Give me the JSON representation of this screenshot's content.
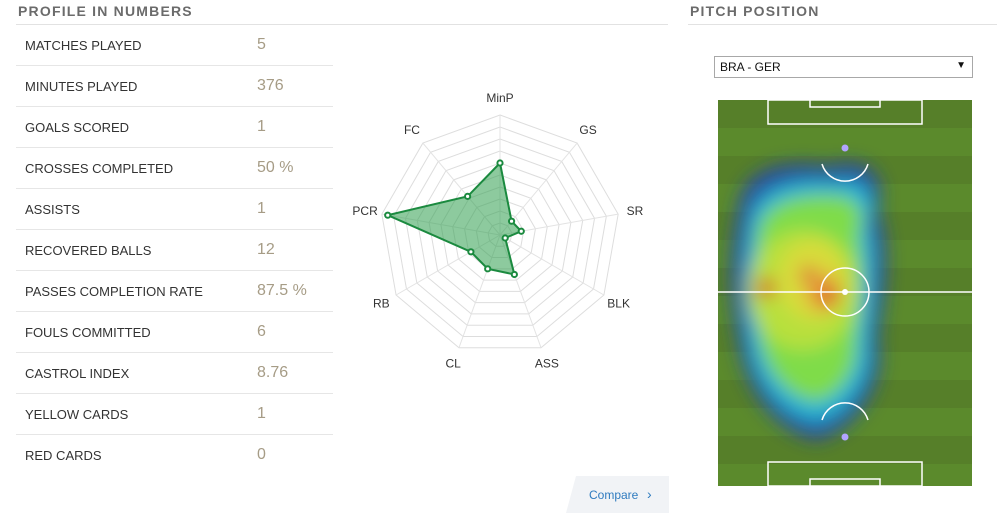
{
  "profile": {
    "title": "PROFILE IN NUMBERS",
    "stats": [
      {
        "label": "MATCHES PLAYED",
        "value": "5"
      },
      {
        "label": "MINUTES PLAYED",
        "value": "376"
      },
      {
        "label": "GOALS SCORED",
        "value": "1"
      },
      {
        "label": "CROSSES COMPLETED",
        "value": "50 %"
      },
      {
        "label": "ASSISTS",
        "value": "1"
      },
      {
        "label": "RECOVERED BALLS",
        "value": "12"
      },
      {
        "label": "PASSES COMPLETION RATE",
        "value": "87.5 %"
      },
      {
        "label": "FOULS COMMITTED",
        "value": "6"
      },
      {
        "label": "CASTROL INDEX",
        "value": "8.76"
      },
      {
        "label": "YELLOW CARDS",
        "value": "1"
      },
      {
        "label": "RED CARDS",
        "value": "0"
      }
    ],
    "compare_label": "Compare",
    "compare_icon": "chevron-right-icon"
  },
  "pitch_position": {
    "title": "PITCH POSITION",
    "selected_match": "BRA - GER",
    "dropdown_icon": "triangle-down-icon"
  },
  "chart_data": {
    "type": "radar",
    "axes": [
      "MinP",
      "GS",
      "SR",
      "BLK",
      "ASS",
      "CL",
      "RB",
      "PCR",
      "FC"
    ],
    "values": [
      0.6,
      0.15,
      0.18,
      0.05,
      0.35,
      0.3,
      0.28,
      0.95,
      0.42
    ],
    "range": [
      0,
      1
    ],
    "rings": 10,
    "fill_color": "#2f9e4f",
    "line_color": "#1b8a3f"
  },
  "colors": {
    "value_text": "#a69c86",
    "title_text": "#6b6b6b",
    "link": "#2f7bbf",
    "pitch_grass": "#5a8a2a"
  }
}
